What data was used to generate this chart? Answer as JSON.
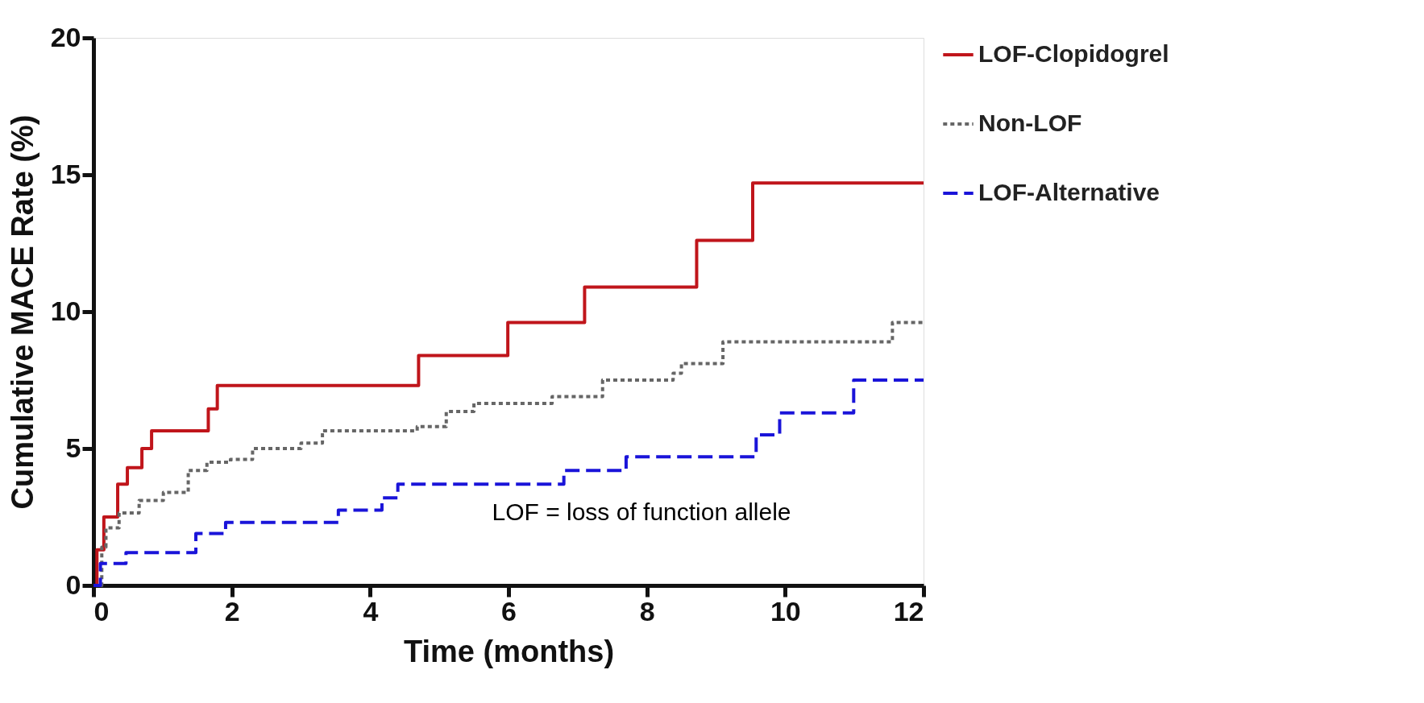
{
  "chart_data": {
    "type": "step",
    "xlabel": "Time (months)",
    "ylabel": "Cumulative MACE Rate (%)",
    "xlim": [
      0,
      12
    ],
    "ylim": [
      0,
      20
    ],
    "xticks": [
      0,
      2,
      4,
      6,
      8,
      10,
      12
    ],
    "yticks": [
      0,
      5,
      10,
      15,
      20
    ],
    "grid": false,
    "legend": "right",
    "annotations": [
      "LOF = loss of function allele"
    ],
    "series": [
      {
        "name": "LOF-Clopidogrel",
        "color": "#c0151b",
        "line_style": "solid",
        "x": [
          0,
          0.05,
          0.15,
          0.35,
          0.49,
          0.7,
          0.84,
          1.66,
          1.79,
          4.7,
          5.99,
          7.1,
          8.72,
          9.53,
          12
        ],
        "values": [
          0,
          1.3,
          2.5,
          3.7,
          4.3,
          5.0,
          5.65,
          6.45,
          7.3,
          8.4,
          9.6,
          10.9,
          12.6,
          14.7,
          14.7
        ]
      },
      {
        "name": "Non-LOF",
        "color": "#666666",
        "line_style": "dotted",
        "x": [
          0,
          0.12,
          0.18,
          0.37,
          0.66,
          1.01,
          1.37,
          1.64,
          1.98,
          2.3,
          3.0,
          3.31,
          4.68,
          5.1,
          5.5,
          6.63,
          7.36,
          8.38,
          8.5,
          9.1,
          11.45,
          11.55,
          12
        ],
        "values": [
          0,
          1.4,
          2.1,
          2.65,
          3.1,
          3.4,
          4.2,
          4.5,
          4.6,
          5.0,
          5.2,
          5.65,
          5.8,
          6.35,
          6.65,
          6.9,
          7.5,
          7.75,
          8.1,
          8.9,
          8.9,
          9.6,
          9.6
        ]
      },
      {
        "name": "LOF-Alternative",
        "color": "#1a14d9",
        "line_style": "dashed",
        "x": [
          0,
          0.1,
          0.47,
          1.48,
          1.91,
          3.54,
          4.17,
          4.4,
          6.8,
          7.7,
          9.58,
          9.92,
          10.99,
          12
        ],
        "values": [
          0,
          0.8,
          1.2,
          1.9,
          2.3,
          2.75,
          3.2,
          3.7,
          4.2,
          4.7,
          5.5,
          6.3,
          7.5,
          7.5
        ]
      }
    ]
  }
}
